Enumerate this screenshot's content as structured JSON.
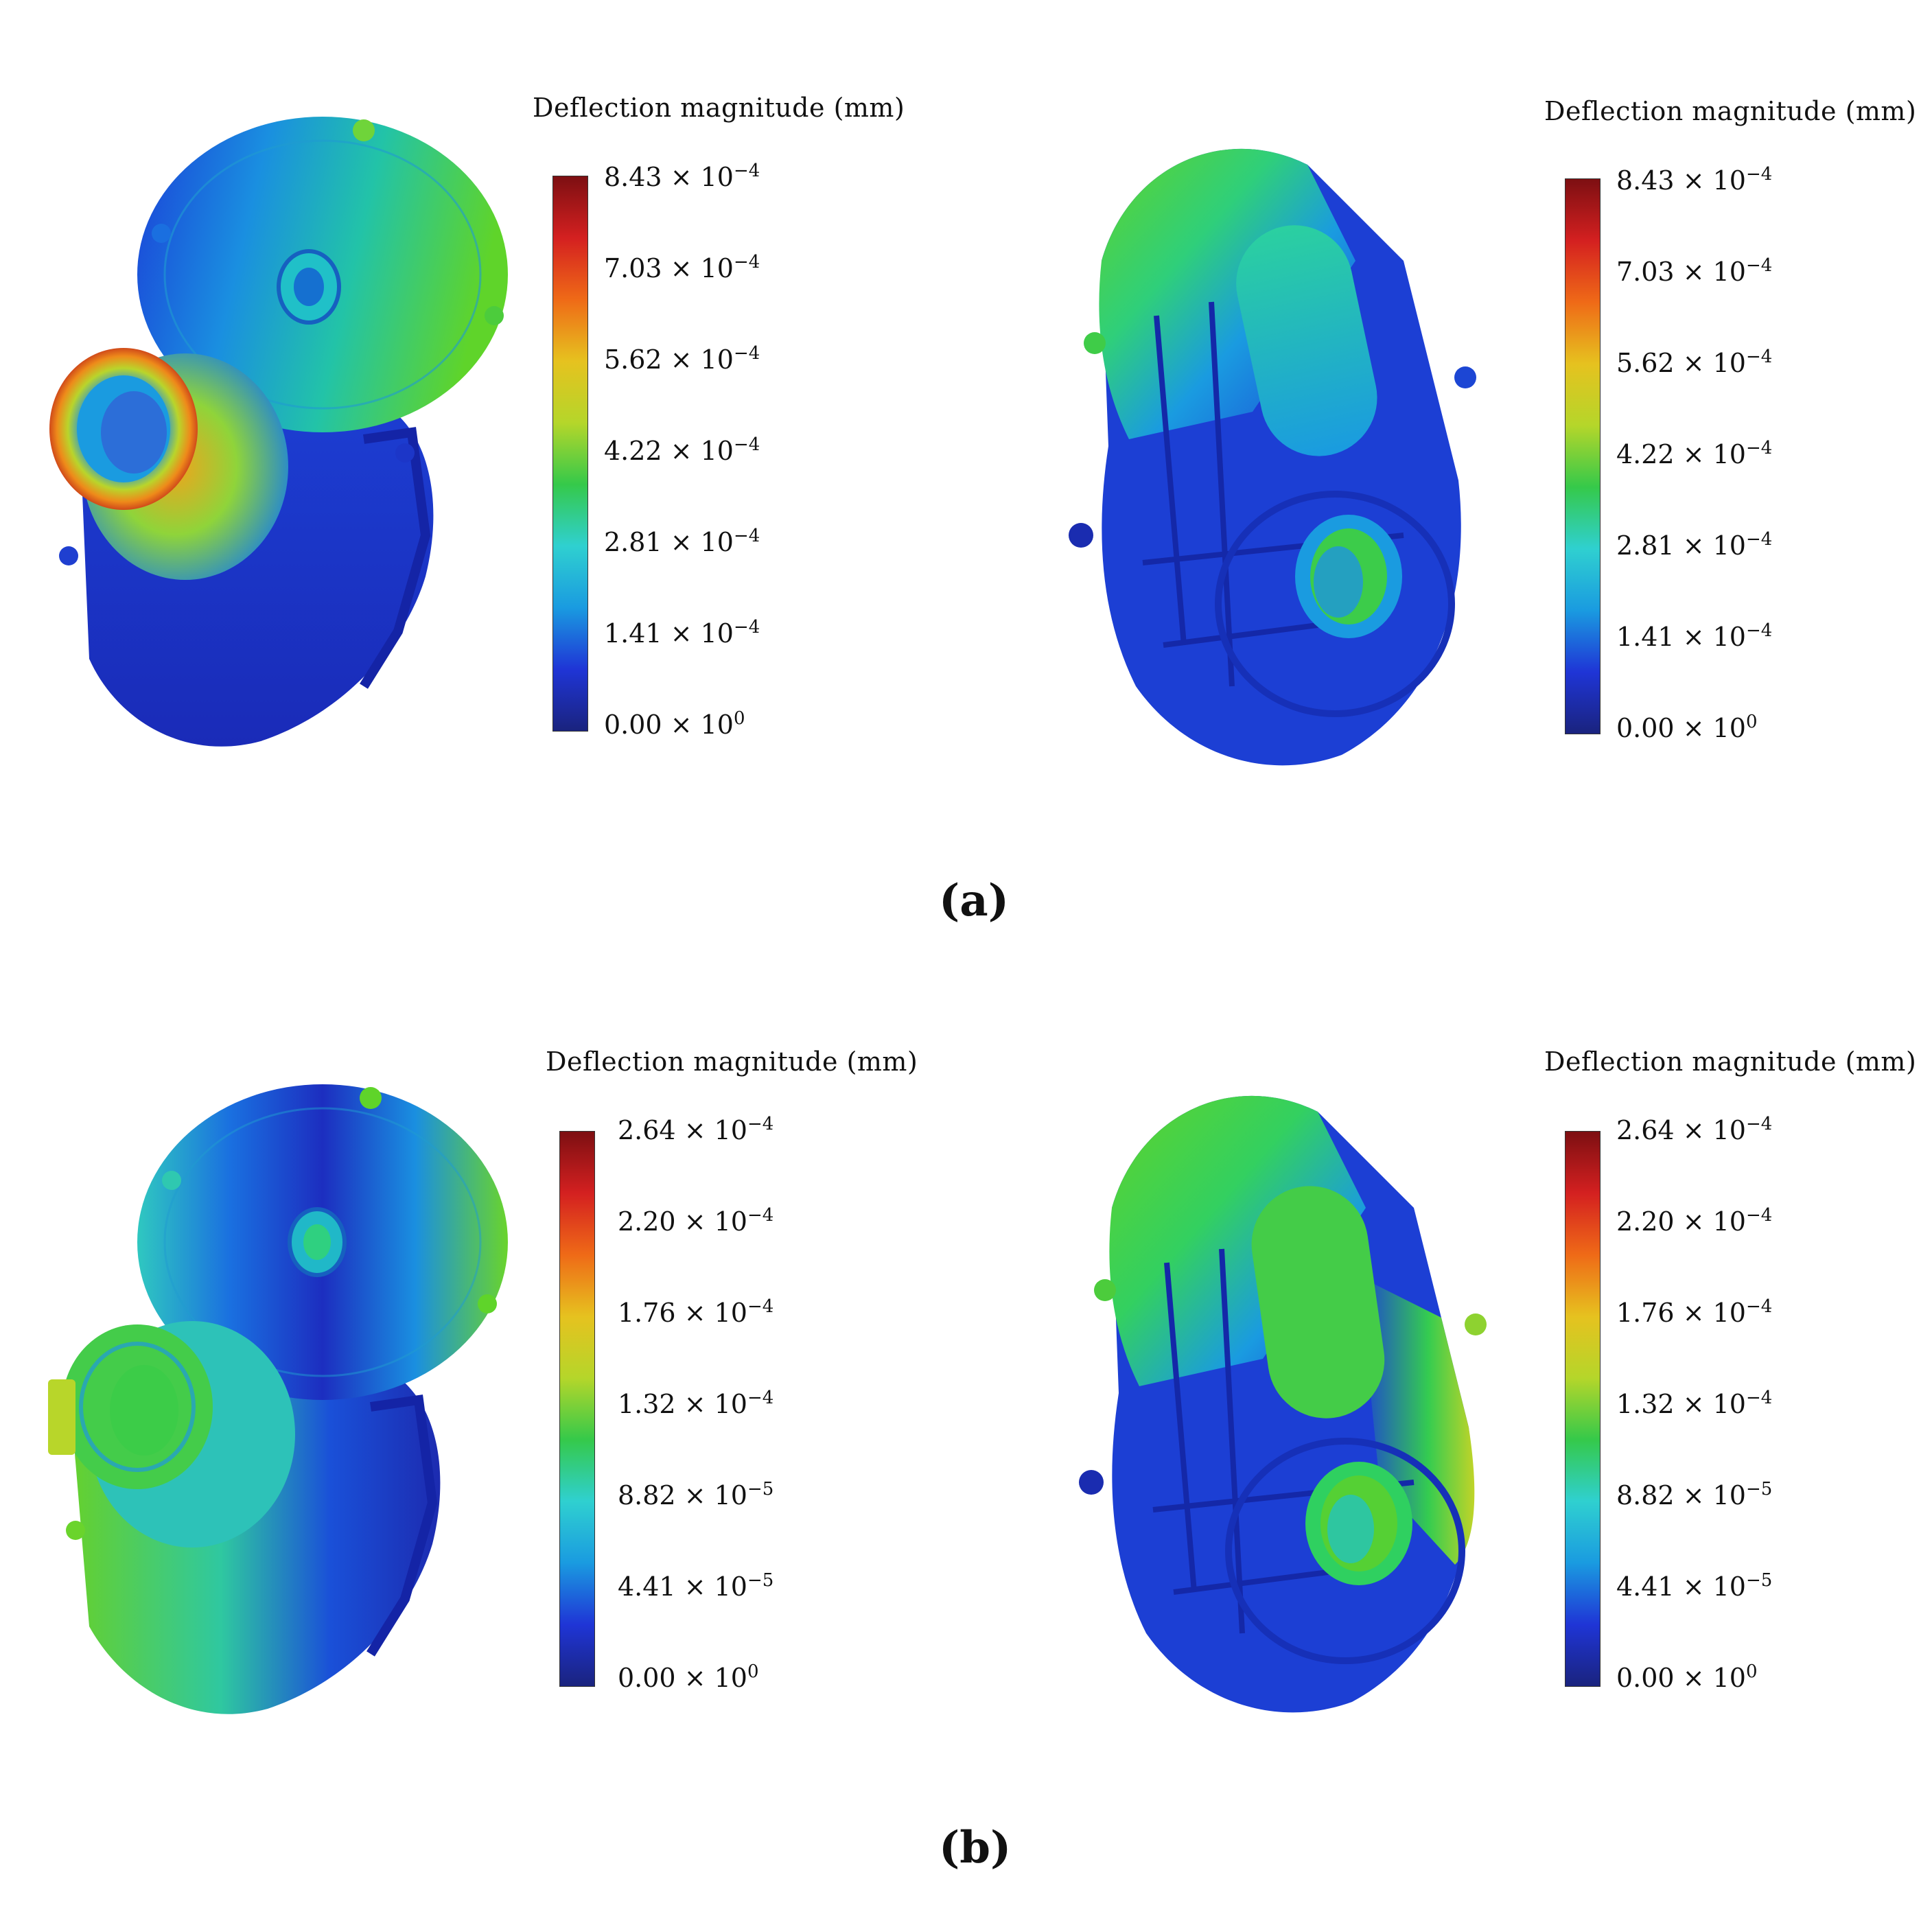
{
  "colors": {
    "colormap": [
      "#1a237e",
      "#1f35d6",
      "#1a9be0",
      "#2fd0d0",
      "#35c94a",
      "#b5d62a",
      "#e6c21f",
      "#ef6a17",
      "#d42020",
      "#7d0f12"
    ]
  },
  "panels": [
    {
      "caption": "(a)",
      "left": {
        "legend_title": "Deflection  magnitude  (mm)",
        "ticks": [
          {
            "mant": "8.43 × 10",
            "exp": "−4"
          },
          {
            "mant": "7.03 × 10",
            "exp": "−4"
          },
          {
            "mant": "5.62 × 10",
            "exp": "−4"
          },
          {
            "mant": "4.22 × 10",
            "exp": "−4"
          },
          {
            "mant": "2.81 × 10",
            "exp": "−4"
          },
          {
            "mant": "1.41 × 10",
            "exp": "−4"
          },
          {
            "mant": "0.00 × 10",
            "exp": "0"
          }
        ]
      },
      "right": {
        "legend_title": "Deflection  magnitude  (mm)",
        "ticks": [
          {
            "mant": "8.43 × 10",
            "exp": "−4"
          },
          {
            "mant": "7.03 × 10",
            "exp": "−4"
          },
          {
            "mant": "5.62 × 10",
            "exp": "−4"
          },
          {
            "mant": "4.22 × 10",
            "exp": "−4"
          },
          {
            "mant": "2.81 × 10",
            "exp": "−4"
          },
          {
            "mant": "1.41 × 10",
            "exp": "−4"
          },
          {
            "mant": "0.00 × 10",
            "exp": "0"
          }
        ]
      }
    },
    {
      "caption": "(b)",
      "left": {
        "legend_title": "Deflection  magnitude  (mm)",
        "ticks": [
          {
            "mant": "2.64 × 10",
            "exp": "−4"
          },
          {
            "mant": "2.20 × 10",
            "exp": "−4"
          },
          {
            "mant": "1.76 × 10",
            "exp": "−4"
          },
          {
            "mant": "1.32 × 10",
            "exp": "−4"
          },
          {
            "mant": "8.82 × 10",
            "exp": "−5"
          },
          {
            "mant": "4.41 × 10",
            "exp": "−5"
          },
          {
            "mant": "0.00 × 10",
            "exp": "0"
          }
        ]
      },
      "right": {
        "legend_title": "Deflection  magnitude  (mm)",
        "ticks": [
          {
            "mant": "2.64 × 10",
            "exp": "−4"
          },
          {
            "mant": "2.20 × 10",
            "exp": "−4"
          },
          {
            "mant": "1.76 × 10",
            "exp": "−4"
          },
          {
            "mant": "1.32 × 10",
            "exp": "−4"
          },
          {
            "mant": "8.82 × 10",
            "exp": "−5"
          },
          {
            "mant": "4.41 × 10",
            "exp": "−5"
          },
          {
            "mant": "0.00 × 10",
            "exp": "0"
          }
        ]
      }
    }
  ]
}
